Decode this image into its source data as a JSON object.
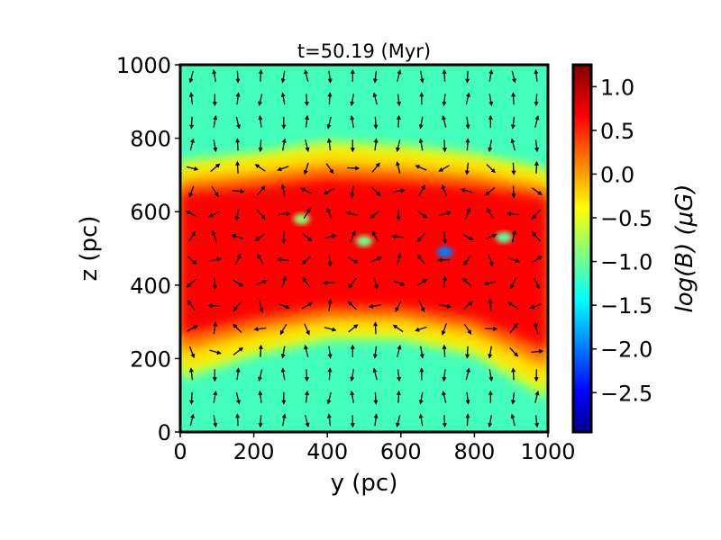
{
  "chart_data": {
    "type": "heatmap",
    "title": "t=50.19 (Myr)",
    "xlabel": "y (pc)",
    "ylabel": "z (pc)",
    "xlim": [
      0,
      1000
    ],
    "ylim": [
      0,
      1000
    ],
    "x_ticks": [
      "0",
      "200",
      "400",
      "600",
      "800",
      "1000"
    ],
    "y_ticks": [
      "0",
      "200",
      "400",
      "600",
      "800",
      "1000"
    ],
    "x_tick_values": [
      0,
      200,
      400,
      600,
      800,
      1000
    ],
    "y_tick_values": [
      0,
      200,
      400,
      600,
      800,
      1000
    ],
    "colorbar": {
      "label": "log(B) (μG)",
      "range": [
        -2.95,
        1.25
      ],
      "colormap": "jet",
      "ticks": [
        "1.0",
        "0.5",
        "0.0",
        "−0.5",
        "−1.0",
        "−1.5",
        "−2.0",
        "−2.5"
      ],
      "tick_values": [
        1.0,
        0.5,
        0.0,
        -0.5,
        -1.0,
        -1.5,
        -2.0,
        -2.5
      ]
    },
    "field_summary": {
      "disk_center_z": 500,
      "disk_top_z_at_y": [
        [
          0,
          720
        ],
        [
          200,
          740
        ],
        [
          400,
          770
        ],
        [
          600,
          760
        ],
        [
          800,
          740
        ],
        [
          1000,
          700
        ]
      ],
      "disk_bottom_z_at_y": [
        [
          0,
          170
        ],
        [
          200,
          230
        ],
        [
          400,
          270
        ],
        [
          600,
          270
        ],
        [
          800,
          230
        ],
        [
          1000,
          120
        ]
      ],
      "midplane_logB": 0.7,
      "edge_logB": -0.2,
      "halo_logB": -1.1,
      "low_field_pockets": [
        {
          "y": 330,
          "z": 580,
          "logB": -0.8
        },
        {
          "y": 500,
          "z": 520,
          "logB": -0.9
        },
        {
          "y": 720,
          "z": 490,
          "logB": -1.9
        },
        {
          "y": 880,
          "z": 530,
          "logB": -1.0
        }
      ]
    },
    "quiver": {
      "description": "magnetic field direction arrows on a regular grid",
      "grid_n": 16,
      "color": "#000000"
    },
    "grid": false,
    "legend": "none"
  }
}
